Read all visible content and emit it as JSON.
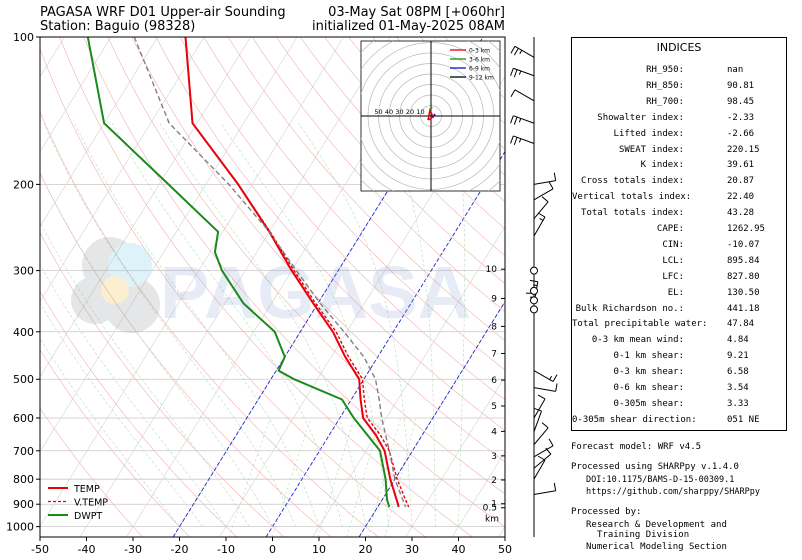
{
  "header": {
    "title_left_line1": "PAGASA WRF D01 Upper-air Sounding",
    "title_left_line2": "Station: Baguio (98328)",
    "title_right_line1": "03-May Sat 08PM [+060hr]",
    "title_right_line2": "initialized 01-May-2025 08AM"
  },
  "watermark": "PAGASA",
  "chart_data": {
    "type": "skew-t",
    "x_ticks": [
      -50,
      -40,
      -30,
      -20,
      -10,
      0,
      10,
      20,
      30,
      40,
      50
    ],
    "p_ticks": [
      100,
      200,
      300,
      400,
      500,
      600,
      700,
      800,
      900,
      1000
    ],
    "p_range": [
      1050,
      100
    ],
    "x_range": [
      -50,
      50
    ],
    "height_km_ticks": [
      {
        "label": "0.5",
        "p": 915
      },
      {
        "label": "1",
        "p": 898
      },
      {
        "label": "2",
        "p": 803
      },
      {
        "label": "3",
        "p": 717
      },
      {
        "label": "4",
        "p": 639
      },
      {
        "label": "5",
        "p": 567
      },
      {
        "label": "6",
        "p": 502
      },
      {
        "label": "7",
        "p": 443
      },
      {
        "label": "8",
        "p": 390
      },
      {
        "label": "9",
        "p": 342
      },
      {
        "label": "10",
        "p": 298
      }
    ],
    "km_label": "km",
    "series": [
      {
        "name": "TEMP",
        "color": "#e8000b",
        "style": "solid",
        "points": [
          [
            100,
            -84
          ],
          [
            150,
            -71
          ],
          [
            200,
            -53
          ],
          [
            250,
            -40
          ],
          [
            300,
            -30
          ],
          [
            350,
            -21
          ],
          [
            400,
            -13
          ],
          [
            450,
            -7
          ],
          [
            500,
            -1
          ],
          [
            550,
            2
          ],
          [
            600,
            5
          ],
          [
            650,
            10
          ],
          [
            700,
            14
          ],
          [
            800,
            19
          ],
          [
            900,
            24
          ],
          [
            912,
            24.5
          ]
        ]
      },
      {
        "name": "V.TEMP",
        "color": "#e8000b",
        "style": "dashed",
        "points": [
          [
            100,
            -84
          ],
          [
            150,
            -71
          ],
          [
            200,
            -53
          ],
          [
            250,
            -39.8
          ],
          [
            300,
            -29.5
          ],
          [
            350,
            -20.5
          ],
          [
            400,
            -12.3
          ],
          [
            450,
            -6.3
          ],
          [
            500,
            -0.3
          ],
          [
            550,
            2.8
          ],
          [
            600,
            5.9
          ],
          [
            650,
            11
          ],
          [
            700,
            15
          ],
          [
            800,
            20.5
          ],
          [
            900,
            26
          ],
          [
            912,
            26.7
          ]
        ]
      },
      {
        "name": "DWPT",
        "color": "#1a8a1a",
        "style": "solid",
        "points": [
          [
            100,
            -105
          ],
          [
            150,
            -90
          ],
          [
            200,
            -68
          ],
          [
            250,
            -51
          ],
          [
            275,
            -49
          ],
          [
            300,
            -45
          ],
          [
            350,
            -36
          ],
          [
            400,
            -25.5
          ],
          [
            450,
            -20
          ],
          [
            480,
            -19.5
          ],
          [
            500,
            -15
          ],
          [
            550,
            -2
          ],
          [
            600,
            3
          ],
          [
            700,
            13
          ],
          [
            800,
            18
          ],
          [
            880,
            21
          ],
          [
            912,
            22.5
          ]
        ]
      },
      {
        "name": "Parcel",
        "color": "#808080",
        "style": "dashed",
        "points": [
          [
            100,
            -95
          ],
          [
            150,
            -76
          ],
          [
            200,
            -55
          ],
          [
            250,
            -40
          ],
          [
            300,
            -29
          ],
          [
            350,
            -19.5
          ],
          [
            400,
            -10.6
          ],
          [
            450,
            -3
          ],
          [
            500,
            2.5
          ],
          [
            550,
            6
          ],
          [
            600,
            9
          ],
          [
            700,
            15
          ],
          [
            800,
            20
          ],
          [
            912,
            26
          ]
        ]
      }
    ],
    "legend": {
      "position": "lower-left",
      "entries": [
        "TEMP",
        "V.TEMP",
        "DWPT"
      ]
    },
    "hodograph": {
      "position": "upper-right inset",
      "ring_labels": [
        "50",
        "40",
        "30",
        "20",
        "10"
      ],
      "legend": [
        {
          "name": "0-3 km",
          "color": "#e8000b"
        },
        {
          "name": "3-6 km",
          "color": "#1a8a1a"
        },
        {
          "name": "6-9 km",
          "color": "#1010c0"
        },
        {
          "name": "9-12 km",
          "color": "#000000"
        }
      ]
    }
  },
  "indices": {
    "title": "INDICES",
    "rows": [
      {
        "label": "RH_950:",
        "value": "nan"
      },
      {
        "label": "RH_850:",
        "value": "90.81"
      },
      {
        "label": "RH_700:",
        "value": "98.45"
      },
      {
        "label": "Showalter index:",
        "value": "-2.33"
      },
      {
        "label": "Lifted index:",
        "value": "-2.66"
      },
      {
        "label": "SWEAT index:",
        "value": "220.15"
      },
      {
        "label": "K index:",
        "value": "39.61"
      },
      {
        "label": "Cross totals index:",
        "value": "20.87"
      },
      {
        "label": "Vertical totals index:",
        "value": "22.40"
      },
      {
        "label": "Total totals index:",
        "value": "43.28"
      },
      {
        "label": "CAPE:",
        "value": "1262.95"
      },
      {
        "label": "CIN:",
        "value": "-10.07"
      },
      {
        "label": "LCL:",
        "value": "895.84"
      },
      {
        "label": "LFC:",
        "value": "827.80"
      },
      {
        "label": "EL:",
        "value": "130.50"
      },
      {
        "label": "Bulk Richardson no.:",
        "value": "441.18"
      },
      {
        "label": "Total precipitable water:",
        "value": "47.84"
      },
      {
        "label": "0-3 km mean wind:",
        "value": "4.84"
      },
      {
        "label": "0-1 km shear:",
        "value": "9.21"
      },
      {
        "label": "0-3 km shear:",
        "value": "6.58"
      },
      {
        "label": "0-6 km shear:",
        "value": "3.54"
      },
      {
        "label": "0-305m shear:",
        "value": "3.33"
      },
      {
        "label": "0-305m shear direction:",
        "value": "051 NE"
      }
    ]
  },
  "footer": {
    "forecast_model": "Forecast model: WRF v4.5",
    "processed_using": "Processed using SHARPpy v.1.4.0",
    "doi": "DOI:10.1175/BAMS-D-15-00309.1",
    "github": "https://github.com/sharppy/SHARPpy",
    "processed_by": "Processed by:",
    "org_line1": "Research & Development and",
    "org_line2": "Training Division",
    "org_line3": "Numerical Modeling Section"
  }
}
